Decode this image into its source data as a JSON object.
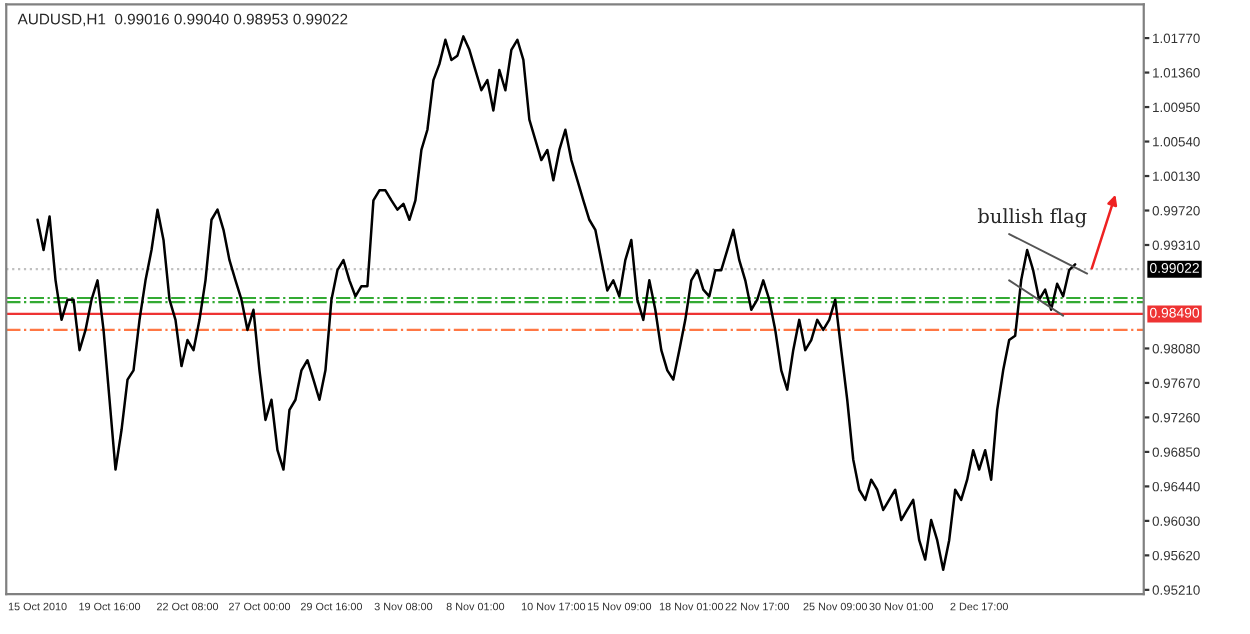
{
  "chart_data": {
    "type": "line",
    "title": "AUDUSD,H1  0.99016 0.99040 0.98953 0.99022",
    "categories": [
      "15 Oct 2010",
      null,
      null,
      null,
      null,
      null,
      null,
      null,
      null,
      null,
      null,
      null,
      "19 Oct 16:00",
      null,
      null,
      null,
      null,
      null,
      null,
      null,
      null,
      null,
      null,
      null,
      null,
      "22 Oct 08:00",
      null,
      null,
      null,
      null,
      null,
      null,
      null,
      null,
      null,
      null,
      null,
      "27 Oct 00:00",
      null,
      null,
      null,
      null,
      null,
      null,
      null,
      null,
      null,
      null,
      null,
      "29 Oct 16:00",
      null,
      null,
      null,
      null,
      null,
      null,
      null,
      null,
      null,
      null,
      null,
      "3 Nov 08:00",
      null,
      null,
      null,
      null,
      null,
      null,
      null,
      null,
      null,
      null,
      null,
      "8 Nov 01:00",
      null,
      null,
      null,
      null,
      null,
      null,
      null,
      null,
      null,
      null,
      null,
      null,
      "10 Nov 17:00",
      null,
      null,
      null,
      null,
      null,
      null,
      null,
      null,
      null,
      null,
      "15 Nov 09:00",
      null,
      null,
      null,
      null,
      null,
      null,
      null,
      null,
      null,
      null,
      null,
      "18 Nov 01:00",
      null,
      null,
      null,
      null,
      null,
      null,
      null,
      null,
      null,
      null,
      "22 Nov 17:00",
      null,
      null,
      null,
      null,
      null,
      null,
      null,
      null,
      null,
      null,
      null,
      null,
      "25 Nov 09:00",
      null,
      null,
      null,
      null,
      null,
      null,
      null,
      null,
      null,
      null,
      "30 Nov 01:00",
      null,
      null,
      null,
      null,
      null,
      null,
      null,
      null,
      null,
      null,
      null,
      null,
      "2 Dec 17:00",
      null,
      null,
      null,
      null,
      null,
      null,
      null,
      null,
      null,
      null,
      null,
      null,
      null,
      null,
      null,
      null
    ],
    "series": [
      {
        "color": "#000000",
        "values": [
          0.9961,
          0.9925,
          0.9965,
          0.9889,
          0.9842,
          0.9866,
          0.9866,
          0.9806,
          0.983,
          0.9866,
          0.9889,
          0.983,
          0.9747,
          0.9664,
          0.9711,
          0.9771,
          0.9782,
          0.9842,
          0.9889,
          0.9925,
          0.9973,
          0.9937,
          0.9866,
          0.9842,
          0.9787,
          0.9818,
          0.9806,
          0.9842,
          0.9889,
          0.9961,
          0.9973,
          0.9949,
          0.9913,
          0.9889,
          0.9866,
          0.983,
          0.9854,
          0.9782,
          0.9723,
          0.9747,
          0.9687,
          0.9664,
          0.9735,
          0.9747,
          0.9782,
          0.9794,
          0.9771,
          0.9747,
          0.9782,
          0.9866,
          0.9901,
          0.9913,
          0.9889,
          0.987,
          0.9882,
          0.9882,
          0.9984,
          0.9996,
          0.9996,
          0.9984,
          0.9973,
          0.998,
          0.9961,
          0.9984,
          1.0044,
          1.0068,
          1.0127,
          1.0146,
          1.0175,
          1.0151,
          1.0156,
          1.0179,
          1.0163,
          1.0139,
          1.0115,
          1.0127,
          1.0091,
          1.0139,
          1.0115,
          1.0163,
          1.0175,
          1.0151,
          1.008,
          1.0056,
          1.0032,
          1.0044,
          1.0008,
          1.0044,
          1.0068,
          1.0032,
          1.0008,
          0.9984,
          0.9961,
          0.9949,
          0.9913,
          0.9877,
          0.9889,
          0.987,
          0.9913,
          0.9937,
          0.9866,
          0.9842,
          0.9889,
          0.9854,
          0.9806,
          0.9782,
          0.9771,
          0.9806,
          0.9842,
          0.9889,
          0.9901,
          0.9878,
          0.987,
          0.9901,
          0.9901,
          0.9925,
          0.9949,
          0.9913,
          0.9889,
          0.9854,
          0.9866,
          0.9889,
          0.9866,
          0.983,
          0.9782,
          0.9759,
          0.9806,
          0.9842,
          0.9806,
          0.9818,
          0.9842,
          0.983,
          0.9842,
          0.9866,
          0.9806,
          0.9747,
          0.9676,
          0.964,
          0.9628,
          0.9652,
          0.964,
          0.9616,
          0.9628,
          0.964,
          0.9604,
          0.9616,
          0.9628,
          0.958,
          0.9557,
          0.9604,
          0.958,
          0.9545,
          0.958,
          0.964,
          0.9628,
          0.9652,
          0.9687,
          0.9664,
          0.9687,
          0.9652,
          0.9735,
          0.9782,
          0.9818,
          0.9823,
          0.9889,
          0.9925,
          0.9901,
          0.9866,
          0.9878,
          0.9854,
          0.9885,
          0.987,
          0.9901,
          0.9908
        ]
      }
    ],
    "ylim": [
      0.9516,
      1.0217
    ],
    "yticks": [
      {
        "value": 0.9521,
        "label": "0.95210"
      },
      {
        "value": 0.9562,
        "label": "0.95620"
      },
      {
        "value": 0.9603,
        "label": "0.96030"
      },
      {
        "value": 0.9644,
        "label": "0.96440"
      },
      {
        "value": 0.9685,
        "label": "0.96850"
      },
      {
        "value": 0.9726,
        "label": "0.97260"
      },
      {
        "value": 0.9767,
        "label": "0.97670"
      },
      {
        "value": 0.9808,
        "label": "0.98080"
      },
      {
        "value": 0.9931,
        "label": "0.99310"
      },
      {
        "value": 0.9972,
        "label": "0.99720"
      },
      {
        "value": 1.0013,
        "label": "1.00130"
      },
      {
        "value": 1.0054,
        "label": "1.00540"
      },
      {
        "value": 1.0095,
        "label": "1.00950"
      },
      {
        "value": 1.0136,
        "label": "1.01360"
      },
      {
        "value": 1.0177,
        "label": "1.01770"
      }
    ],
    "ref_lines": [
      {
        "axis": "y",
        "value": 0.99022,
        "label": "0.99022",
        "color": "#c0c0c0",
        "line_style": "dotted"
      },
      {
        "axis": "y",
        "value": 0.9868,
        "color": "#33aa33",
        "line_style": "dashdot"
      },
      {
        "axis": "y",
        "value": 0.9863,
        "color": "#33aa33",
        "line_style": "dashdot"
      },
      {
        "axis": "y",
        "value": 0.9849,
        "label": "0.98490",
        "color": "#ee3333",
        "line_style": "solid"
      },
      {
        "axis": "y",
        "value": 0.983,
        "color": "#ff7744",
        "line_style": "dashdot"
      }
    ],
    "annotations": [
      "bullish flag"
    ],
    "grid": false
  }
}
